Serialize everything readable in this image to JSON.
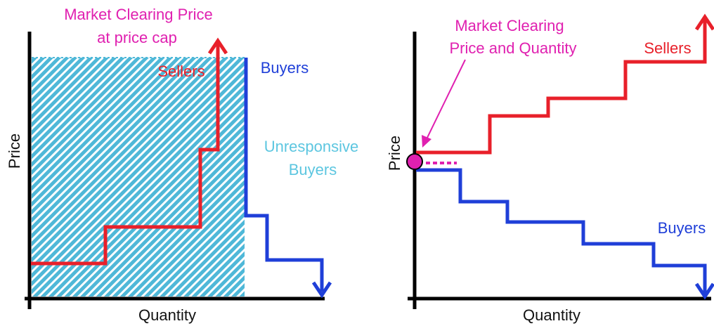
{
  "left_panel": {
    "annotation": [
      "Market Clearing Price",
      "at price cap"
    ],
    "sellers_label": "Sellers",
    "buyers_label": "Buyers",
    "unresponsive_label": [
      "Unresponsive",
      "Buyers"
    ],
    "y_axis_label": "Price",
    "x_axis_label": "Quantity"
  },
  "right_panel": {
    "annotation": [
      "Market Clearing",
      "Price and Quantity"
    ],
    "sellers_label": "Sellers",
    "buyers_label": "Buyers",
    "y_axis_label": "Price",
    "x_axis_label": "Quantity"
  }
}
